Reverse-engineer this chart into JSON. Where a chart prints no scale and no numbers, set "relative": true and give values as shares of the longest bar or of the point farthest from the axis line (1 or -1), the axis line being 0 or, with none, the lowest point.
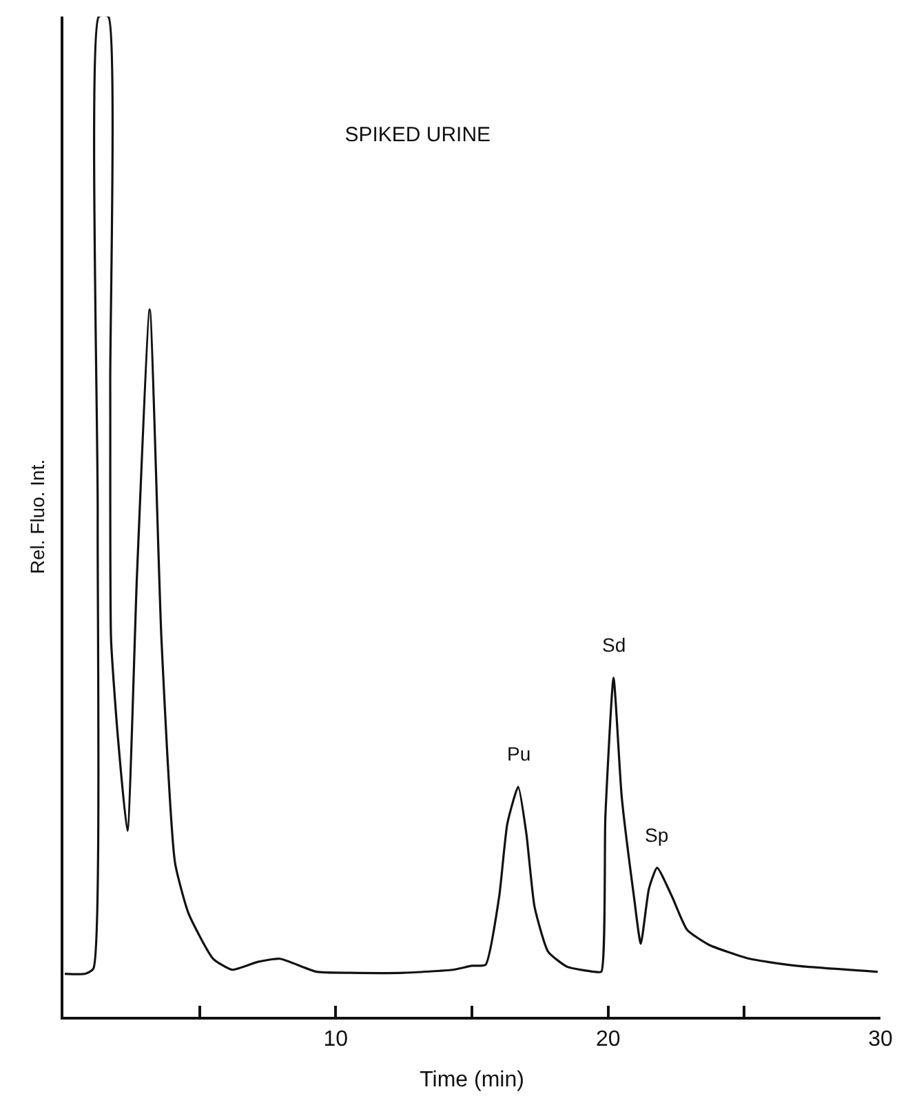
{
  "chart_data": {
    "type": "line",
    "relative": true,
    "title": "SPIKED URINE",
    "xlabel": "Time (min)",
    "ylabel": "Rel. Fluo. Int.",
    "xlim": [
      0,
      30
    ],
    "xticks": [
      {
        "value": 5,
        "label": null
      },
      10,
      {
        "value": 15,
        "label": null
      },
      20,
      {
        "value": 25,
        "label": null
      },
      30
    ],
    "x": [
      0.05,
      0.8,
      1.1,
      1.26,
      1.3,
      1.65,
      1.72,
      1.75,
      2.0,
      2.35,
      2.7,
      3.17,
      3.6,
      4.1,
      4.6,
      5.5,
      6.2,
      7.15,
      7.95,
      9.3,
      10.5,
      12.5,
      14.3,
      15.0,
      15.5,
      16.0,
      16.3,
      16.7,
      17.0,
      17.3,
      17.8,
      18.5,
      19.5,
      19.75,
      19.9,
      20.2,
      20.5,
      20.95,
      21.2,
      21.5,
      21.8,
      22.35,
      22.9,
      23.7,
      25.2,
      26.9,
      29.9
    ],
    "series": [
      {
        "color": "#111111",
        "values": [
          0.043,
          0.043,
          0.048,
          0.5,
          1.0,
          1.0,
          0.634,
          0.378,
          0.28,
          0.186,
          0.44,
          0.707,
          0.378,
          0.154,
          0.103,
          0.058,
          0.047,
          0.055,
          0.058,
          0.045,
          0.044,
          0.044,
          0.047,
          0.051,
          0.052,
          0.12,
          0.193,
          0.23,
          0.183,
          0.11,
          0.065,
          0.05,
          0.045,
          0.045,
          0.2,
          0.339,
          0.22,
          0.12,
          0.073,
          0.128,
          0.149,
          0.12,
          0.087,
          0.072,
          0.058,
          0.051,
          0.045
        ]
      }
    ],
    "annotations": [
      {
        "text": "Pu",
        "x": 16.7,
        "y": 0.23
      },
      {
        "text": "Sd",
        "x": 20.2,
        "y": 0.339
      },
      {
        "text": "Sp",
        "x": 21.8,
        "y": 0.149
      }
    ],
    "marker": "none",
    "line_style": "solid"
  }
}
